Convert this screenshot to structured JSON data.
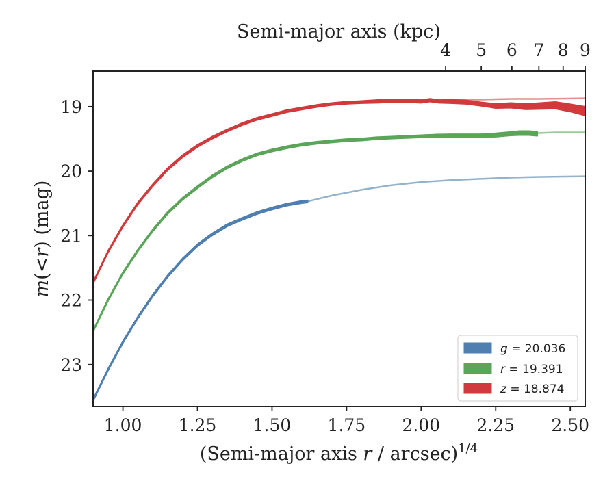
{
  "chart_data": {
    "type": "line",
    "title": "",
    "xlabel_main": "(Semi-major axis ",
    "xlabel_var": "r",
    "xlabel_tail": " / arcsec)",
    "xlabel_exp": "1/4",
    "ylabel_m": "m",
    "ylabel_mid": "(<",
    "ylabel_r": "r",
    "ylabel_tail": ") (mag)",
    "top_xlabel": "Semi-major axis (kpc)",
    "xlim": [
      0.9,
      2.55
    ],
    "ylim": [
      23.65,
      18.45
    ],
    "y_inverted": true,
    "xticks": [
      "1.00",
      "1.25",
      "1.50",
      "1.75",
      "2.00",
      "2.25",
      "2.50"
    ],
    "xtick_values": [
      1.0,
      1.25,
      1.5,
      1.75,
      2.0,
      2.25,
      2.5
    ],
    "yticks": [
      "19",
      "20",
      "21",
      "22",
      "23"
    ],
    "ytick_values": [
      19,
      20,
      21,
      22,
      23
    ],
    "top_xticks": [
      "4",
      "5",
      "6",
      "7",
      "8",
      "9"
    ],
    "top_xtick_values_kpc": [
      4,
      5,
      6,
      7,
      8,
      9
    ],
    "top_axis_map": "kpc = 11.477 * x^4 (x in arcsec^(1/4))",
    "grid": false,
    "legend_position": "lower-right",
    "legend": [
      {
        "band": "g",
        "text": " = 20.036",
        "color": "#4e7fb0"
      },
      {
        "band": "r",
        "text": " = 19.391",
        "color": "#5aa558"
      },
      {
        "band": "z",
        "text": " = 18.874",
        "color": "#d03a3c"
      }
    ],
    "series": [
      {
        "name": "g = 20.036",
        "color": "#4e7fb0",
        "model_color": "#93b2cb",
        "x": [
          0.9,
          0.95,
          1.0,
          1.05,
          1.1,
          1.15,
          1.2,
          1.25,
          1.3,
          1.35,
          1.4,
          1.45,
          1.5,
          1.55,
          1.6,
          1.62
        ],
        "y": [
          23.55,
          23.08,
          22.65,
          22.27,
          21.93,
          21.63,
          21.37,
          21.15,
          20.98,
          20.84,
          20.74,
          20.65,
          20.58,
          20.52,
          20.48,
          20.47
        ],
        "half_width": [
          0.02,
          0.02,
          0.02,
          0.02,
          0.02,
          0.02,
          0.02,
          0.02,
          0.02,
          0.02,
          0.02,
          0.02,
          0.02,
          0.02,
          0.02,
          0.02
        ],
        "model_x": [
          1.62,
          1.7,
          1.8,
          1.9,
          2.0,
          2.1,
          2.2,
          2.3,
          2.4,
          2.55
        ],
        "model_y": [
          20.47,
          20.38,
          20.29,
          20.22,
          20.17,
          20.14,
          20.12,
          20.1,
          20.09,
          20.08
        ]
      },
      {
        "name": "r = 19.391",
        "color": "#5aa558",
        "model_color": "#9acb97",
        "x": [
          0.9,
          0.95,
          1.0,
          1.05,
          1.1,
          1.15,
          1.2,
          1.25,
          1.3,
          1.35,
          1.4,
          1.45,
          1.5,
          1.55,
          1.6,
          1.65,
          1.7,
          1.75,
          1.8,
          1.85,
          1.9,
          1.95,
          2.0,
          2.05,
          2.1,
          2.15,
          2.2,
          2.25,
          2.3,
          2.33,
          2.36,
          2.39
        ],
        "y": [
          22.48,
          22.0,
          21.58,
          21.23,
          20.92,
          20.65,
          20.43,
          20.25,
          20.08,
          19.94,
          19.83,
          19.74,
          19.68,
          19.63,
          19.59,
          19.56,
          19.54,
          19.52,
          19.51,
          19.49,
          19.48,
          19.47,
          19.46,
          19.45,
          19.45,
          19.45,
          19.45,
          19.44,
          19.42,
          19.41,
          19.41,
          19.42
        ],
        "half_width": [
          0.02,
          0.02,
          0.02,
          0.02,
          0.02,
          0.02,
          0.02,
          0.02,
          0.02,
          0.02,
          0.02,
          0.02,
          0.02,
          0.02,
          0.02,
          0.02,
          0.02,
          0.02,
          0.02,
          0.02,
          0.02,
          0.02,
          0.02,
          0.02,
          0.025,
          0.025,
          0.025,
          0.03,
          0.03,
          0.035,
          0.035,
          0.035
        ],
        "model_x": [
          2.39,
          2.45,
          2.55
        ],
        "model_y": [
          19.41,
          19.4,
          19.4
        ]
      },
      {
        "name": "z = 18.874",
        "color": "#d03a3c",
        "model_color": "#e29090",
        "x": [
          0.9,
          0.95,
          1.0,
          1.05,
          1.1,
          1.15,
          1.2,
          1.25,
          1.3,
          1.35,
          1.4,
          1.45,
          1.5,
          1.55,
          1.6,
          1.65,
          1.7,
          1.75,
          1.8,
          1.85,
          1.9,
          1.95,
          2.0,
          2.03,
          2.06,
          2.1,
          2.15,
          2.2,
          2.25,
          2.3,
          2.35,
          2.4,
          2.45,
          2.5,
          2.55
        ],
        "y": [
          21.73,
          21.25,
          20.85,
          20.5,
          20.22,
          19.97,
          19.77,
          19.61,
          19.48,
          19.37,
          19.27,
          19.19,
          19.13,
          19.07,
          19.03,
          18.99,
          18.96,
          18.94,
          18.93,
          18.92,
          18.91,
          18.91,
          18.92,
          18.9,
          18.92,
          18.92,
          18.93,
          18.96,
          18.99,
          18.98,
          19.0,
          18.99,
          18.98,
          19.02,
          19.07
        ],
        "half_width": [
          0.02,
          0.02,
          0.02,
          0.02,
          0.02,
          0.02,
          0.02,
          0.02,
          0.02,
          0.02,
          0.02,
          0.02,
          0.02,
          0.02,
          0.02,
          0.02,
          0.02,
          0.02,
          0.02,
          0.025,
          0.025,
          0.025,
          0.025,
          0.025,
          0.025,
          0.03,
          0.03,
          0.03,
          0.035,
          0.04,
          0.045,
          0.05,
          0.055,
          0.06,
          0.07
        ],
        "model_x": [
          2.0,
          2.1,
          2.2,
          2.3,
          2.4,
          2.55
        ],
        "model_y": [
          18.91,
          18.9,
          18.89,
          18.88,
          18.88,
          18.87
        ]
      }
    ]
  }
}
